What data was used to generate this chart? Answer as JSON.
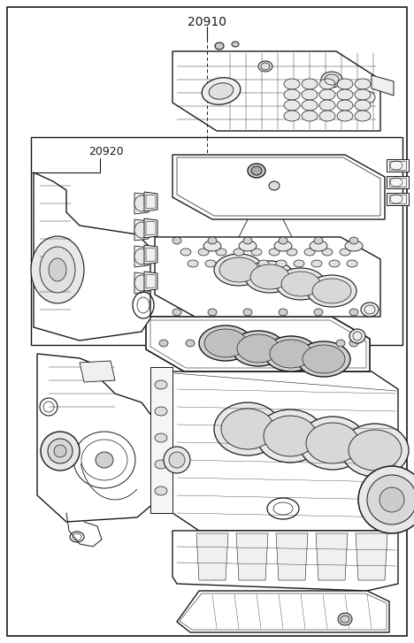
{
  "label_20910": "20910",
  "label_20920": "20920",
  "bg_color": "#ffffff",
  "line_color": "#1a1a1a",
  "fig_width": 4.68,
  "fig_height": 7.27,
  "dpi": 100
}
